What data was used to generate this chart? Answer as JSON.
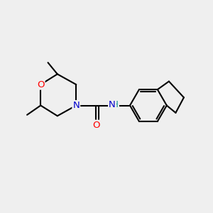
{
  "bg_color": "#efefef",
  "bond_color": "#000000",
  "bond_width": 1.5,
  "atom_colors": {
    "O": "#ff0000",
    "N": "#0000cc",
    "NH": "#008888",
    "C": "#000000"
  },
  "font_size_atom": 9.5,
  "figsize": [
    3.0,
    3.0
  ],
  "dpi": 100
}
